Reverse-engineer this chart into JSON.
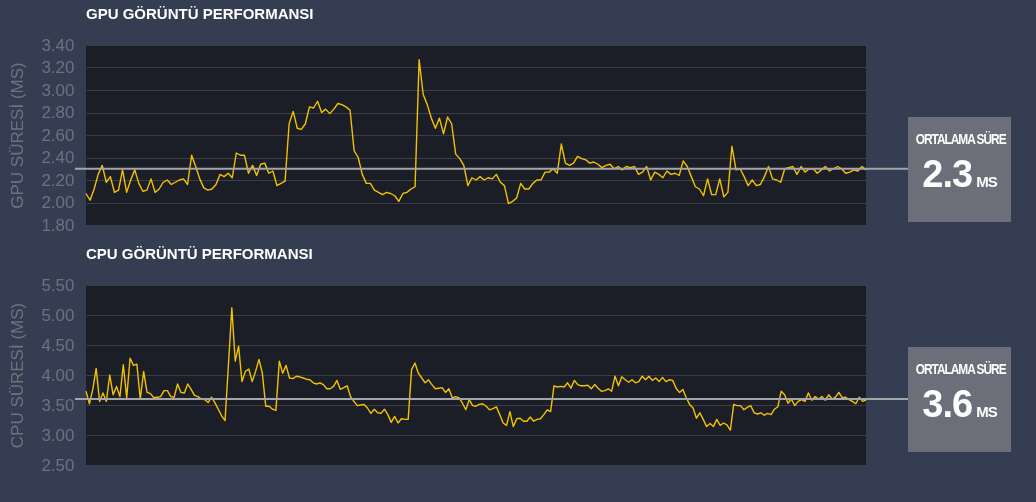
{
  "chart_data": [
    {
      "type": "line",
      "title": "GPU GÖRÜNTÜ PERFORMANSI",
      "ylabel": "GPU SÜRESİ (MS)",
      "ylim": [
        1.8,
        3.4
      ],
      "yticks": [
        {
          "value": 1.8,
          "label": "1.80"
        },
        {
          "value": 2.0,
          "label": "2.00"
        },
        {
          "value": 2.2,
          "label": "2.20"
        },
        {
          "value": 2.4,
          "label": "2.40"
        },
        {
          "value": 2.6,
          "label": "2.60"
        },
        {
          "value": 2.8,
          "label": "2.80"
        },
        {
          "value": 3.0,
          "label": "3.00"
        },
        {
          "value": 3.2,
          "label": "3.20"
        },
        {
          "value": 3.4,
          "label": "3.40"
        }
      ],
      "grid": "y",
      "tick_labels": "y",
      "annotations": [
        "2.3",
        "MS"
      ],
      "ref_lines": [
        {
          "axis": "y",
          "value": 2.3,
          "label": "ORTALAMA SÜRE",
          "color": "#a3a5aa"
        }
      ],
      "categories": [
        null,
        null,
        null,
        null,
        null,
        null,
        null,
        null,
        null,
        null,
        null,
        null,
        null,
        null,
        null,
        null,
        null,
        null,
        null,
        null,
        null,
        null,
        null,
        null,
        null,
        null,
        null,
        null,
        null,
        null,
        null,
        null,
        null,
        null,
        null,
        null,
        null,
        null,
        null,
        null,
        null,
        null,
        null,
        null,
        null,
        null,
        null,
        null,
        null,
        null,
        null,
        null,
        null,
        null,
        null,
        null,
        null,
        null,
        null,
        null,
        null,
        null,
        null,
        null,
        null,
        null,
        null,
        null,
        null,
        null,
        null,
        null,
        null,
        null,
        null,
        null,
        null,
        null,
        null,
        null,
        null,
        null,
        null,
        null,
        null,
        null,
        null,
        null,
        null,
        null,
        null,
        null,
        null,
        null,
        null,
        null,
        null,
        null,
        null,
        null,
        null,
        null,
        null,
        null,
        null,
        null,
        null,
        null,
        null,
        null,
        null,
        null,
        null,
        null,
        null,
        null,
        null,
        null,
        null,
        null,
        null,
        null,
        null,
        null,
        null,
        null,
        null,
        null,
        null,
        null,
        null,
        null,
        null,
        null,
        null,
        null,
        null,
        null,
        null,
        null,
        null,
        null,
        null,
        null,
        null,
        null,
        null,
        null,
        null,
        null,
        null,
        null,
        null,
        null,
        null,
        null,
        null,
        null,
        null,
        null,
        null,
        null,
        null,
        null,
        null,
        null,
        null,
        null,
        null,
        null,
        null,
        null,
        null,
        null,
        null,
        null,
        null,
        null,
        null,
        null,
        null,
        null,
        null,
        null,
        null,
        null,
        null,
        null,
        null,
        null,
        null,
        null,
        null
      ],
      "series": [
        {
          "color": "#f2c200",
          "values": [
            2.08,
            2.02,
            2.12,
            2.25,
            2.33,
            2.18,
            2.23,
            2.09,
            2.11,
            2.29,
            2.09,
            2.2,
            2.29,
            2.17,
            2.1,
            2.11,
            2.21,
            2.09,
            2.12,
            2.18,
            2.2,
            2.16,
            2.18,
            2.2,
            2.21,
            2.16,
            2.42,
            2.32,
            2.21,
            2.13,
            2.11,
            2.12,
            2.16,
            2.25,
            2.23,
            2.26,
            2.22,
            2.44,
            2.42,
            2.42,
            2.26,
            2.33,
            2.24,
            2.34,
            2.35,
            2.26,
            2.28,
            2.15,
            2.17,
            2.19,
            2.7,
            2.81,
            2.66,
            2.65,
            2.7,
            2.85,
            2.84,
            2.9,
            2.8,
            2.83,
            2.79,
            2.83,
            2.88,
            2.87,
            2.85,
            2.82,
            2.46,
            2.4,
            2.25,
            2.17,
            2.17,
            2.11,
            2.09,
            2.07,
            2.09,
            2.08,
            2.06,
            2.01,
            2.08,
            2.09,
            2.12,
            2.14,
            3.27,
            2.96,
            2.87,
            2.75,
            2.66,
            2.75,
            2.61,
            2.76,
            2.7,
            2.43,
            2.39,
            2.33,
            2.15,
            2.22,
            2.2,
            2.23,
            2.2,
            2.22,
            2.21,
            2.25,
            2.18,
            2.15,
            1.99,
            2.01,
            2.04,
            2.17,
            2.12,
            2.12,
            2.17,
            2.2,
            2.2,
            2.27,
            2.27,
            2.3,
            2.26,
            2.52,
            2.35,
            2.33,
            2.35,
            2.41,
            2.39,
            2.38,
            2.35,
            2.36,
            2.34,
            2.31,
            2.33,
            2.34,
            2.3,
            2.32,
            2.29,
            2.32,
            2.31,
            2.32,
            2.25,
            2.27,
            2.32,
            2.2,
            2.27,
            2.25,
            2.22,
            2.28,
            2.25,
            2.26,
            2.24,
            2.37,
            2.32,
            2.23,
            2.14,
            2.12,
            2.06,
            2.21,
            2.07,
            2.07,
            2.21,
            2.05,
            2.09,
            2.5,
            2.29,
            2.3,
            2.23,
            2.15,
            2.2,
            2.15,
            2.16,
            2.23,
            2.32,
            2.21,
            2.2,
            2.18,
            2.3,
            2.31,
            2.32,
            2.25,
            2.32,
            2.27,
            2.3,
            2.3,
            2.26,
            2.29,
            2.32,
            2.28,
            2.3,
            2.32,
            2.3,
            2.26,
            2.27,
            2.29,
            2.28,
            2.32,
            2.29
          ]
        }
      ]
    },
    {
      "type": "line",
      "title": "CPU GÖRÜNTÜ PERFORMANSI",
      "ylabel": "CPU SÜRESİ (MS)",
      "ylim": [
        2.5,
        5.5
      ],
      "yticks": [
        {
          "value": 2.5,
          "label": "2.50"
        },
        {
          "value": 3.0,
          "label": "3.00"
        },
        {
          "value": 3.5,
          "label": "3.50"
        },
        {
          "value": 4.0,
          "label": "4.00"
        },
        {
          "value": 4.5,
          "label": "4.50"
        },
        {
          "value": 5.0,
          "label": "5.00"
        },
        {
          "value": 5.5,
          "label": "5.50"
        }
      ],
      "grid": "y",
      "tick_labels": "y",
      "annotations": [
        "3.6",
        "MS"
      ],
      "ref_lines": [
        {
          "axis": "y",
          "value": 3.6,
          "label": "ORTALAMA SÜRE",
          "color": "#a3a5aa"
        }
      ],
      "categories": [
        null,
        null,
        null,
        null,
        null,
        null,
        null,
        null,
        null,
        null,
        null,
        null,
        null,
        null,
        null,
        null,
        null,
        null,
        null,
        null,
        null,
        null,
        null,
        null,
        null,
        null,
        null,
        null,
        null,
        null,
        null,
        null,
        null,
        null,
        null,
        null,
        null,
        null,
        null,
        null,
        null,
        null,
        null,
        null,
        null,
        null,
        null,
        null,
        null,
        null,
        null,
        null,
        null,
        null,
        null,
        null,
        null,
        null,
        null,
        null,
        null,
        null,
        null,
        null,
        null,
        null,
        null,
        null,
        null,
        null,
        null,
        null,
        null,
        null,
        null,
        null,
        null,
        null,
        null,
        null,
        null,
        null,
        null,
        null,
        null,
        null,
        null,
        null,
        null,
        null,
        null,
        null,
        null,
        null,
        null,
        null,
        null,
        null,
        null,
        null,
        null,
        null,
        null,
        null,
        null,
        null,
        null,
        null,
        null,
        null,
        null,
        null,
        null,
        null,
        null,
        null,
        null,
        null,
        null,
        null,
        null,
        null,
        null,
        null,
        null,
        null,
        null,
        null,
        null,
        null,
        null,
        null,
        null,
        null,
        null,
        null,
        null,
        null,
        null,
        null,
        null,
        null,
        null,
        null,
        null,
        null,
        null,
        null,
        null,
        null,
        null,
        null,
        null,
        null,
        null,
        null,
        null,
        null,
        null,
        null,
        null,
        null,
        null,
        null,
        null,
        null,
        null,
        null,
        null,
        null,
        null,
        null,
        null,
        null,
        null,
        null,
        null,
        null,
        null,
        null,
        null,
        null,
        null,
        null,
        null,
        null,
        null,
        null,
        null,
        null,
        null,
        null,
        null,
        null,
        null,
        null,
        null,
        null,
        null,
        null,
        null,
        null,
        null,
        null,
        null,
        null,
        null,
        null,
        null,
        null,
        null,
        null,
        null,
        null,
        null,
        null,
        null,
        null,
        null,
        null,
        null,
        null,
        null,
        null,
        null,
        null,
        null,
        null,
        null,
        null,
        null
      ],
      "series": [
        {
          "color": "#f2c200",
          "values": [
            3.73,
            3.52,
            3.76,
            4.11,
            3.56,
            3.7,
            3.56,
            4.0,
            3.67,
            3.81,
            3.64,
            4.17,
            3.62,
            4.28,
            4.16,
            4.18,
            3.6,
            4.06,
            3.71,
            3.69,
            3.62,
            3.63,
            3.64,
            3.74,
            3.74,
            3.64,
            3.63,
            3.85,
            3.71,
            3.7,
            3.85,
            3.76,
            3.66,
            3.64,
            3.6,
            3.59,
            3.54,
            3.63,
            3.54,
            3.43,
            3.32,
            3.24,
            4.17,
            5.12,
            4.23,
            4.48,
            3.89,
            4.06,
            4.1,
            3.89,
            4.06,
            4.26,
            4.03,
            3.48,
            3.48,
            3.43,
            3.41,
            4.23,
            4.03,
            4.16,
            3.95,
            3.94,
            3.98,
            3.97,
            3.95,
            3.93,
            3.92,
            3.87,
            3.85,
            3.87,
            3.84,
            3.77,
            3.77,
            3.81,
            3.91,
            3.76,
            3.79,
            3.82,
            3.64,
            3.56,
            3.49,
            3.5,
            3.51,
            3.45,
            3.36,
            3.43,
            3.37,
            3.36,
            3.43,
            3.34,
            3.21,
            3.31,
            3.2,
            3.27,
            3.26,
            3.26,
            4.09,
            4.2,
            4.03,
            3.95,
            3.87,
            3.92,
            3.84,
            3.77,
            3.78,
            3.79,
            3.71,
            3.77,
            3.62,
            3.64,
            3.62,
            3.53,
            3.42,
            3.59,
            3.49,
            3.48,
            3.51,
            3.52,
            3.48,
            3.42,
            3.44,
            3.47,
            3.34,
            3.2,
            3.16,
            3.39,
            3.14,
            3.27,
            3.28,
            3.23,
            3.23,
            3.3,
            3.23,
            3.26,
            3.27,
            3.34,
            3.42,
            3.39,
            3.82,
            3.8,
            3.81,
            3.8,
            3.87,
            3.78,
            3.91,
            3.84,
            3.82,
            3.82,
            3.83,
            3.77,
            3.84,
            3.78,
            3.73,
            3.74,
            3.77,
            3.73,
            3.98,
            3.82,
            3.97,
            3.92,
            3.88,
            3.92,
            3.87,
            3.89,
            3.98,
            3.92,
            3.98,
            3.91,
            3.95,
            3.89,
            3.96,
            3.89,
            3.92,
            3.91,
            3.78,
            3.71,
            3.76,
            3.62,
            3.51,
            3.45,
            3.28,
            3.37,
            3.26,
            3.14,
            3.19,
            3.14,
            3.26,
            3.16,
            3.2,
            3.17,
            3.08,
            3.51,
            3.49,
            3.49,
            3.42,
            3.46,
            3.49,
            3.37,
            3.35,
            3.37,
            3.33,
            3.36,
            3.34,
            3.43,
            3.47,
            3.73,
            3.67,
            3.53,
            3.6,
            3.49,
            3.56,
            3.59,
            3.56,
            3.7,
            3.58,
            3.64,
            3.6,
            3.64,
            3.58,
            3.67,
            3.6,
            3.63,
            3.71,
            3.62,
            3.63,
            3.59,
            3.56,
            3.52,
            3.63,
            3.56,
            3.58
          ]
        }
      ]
    }
  ]
}
